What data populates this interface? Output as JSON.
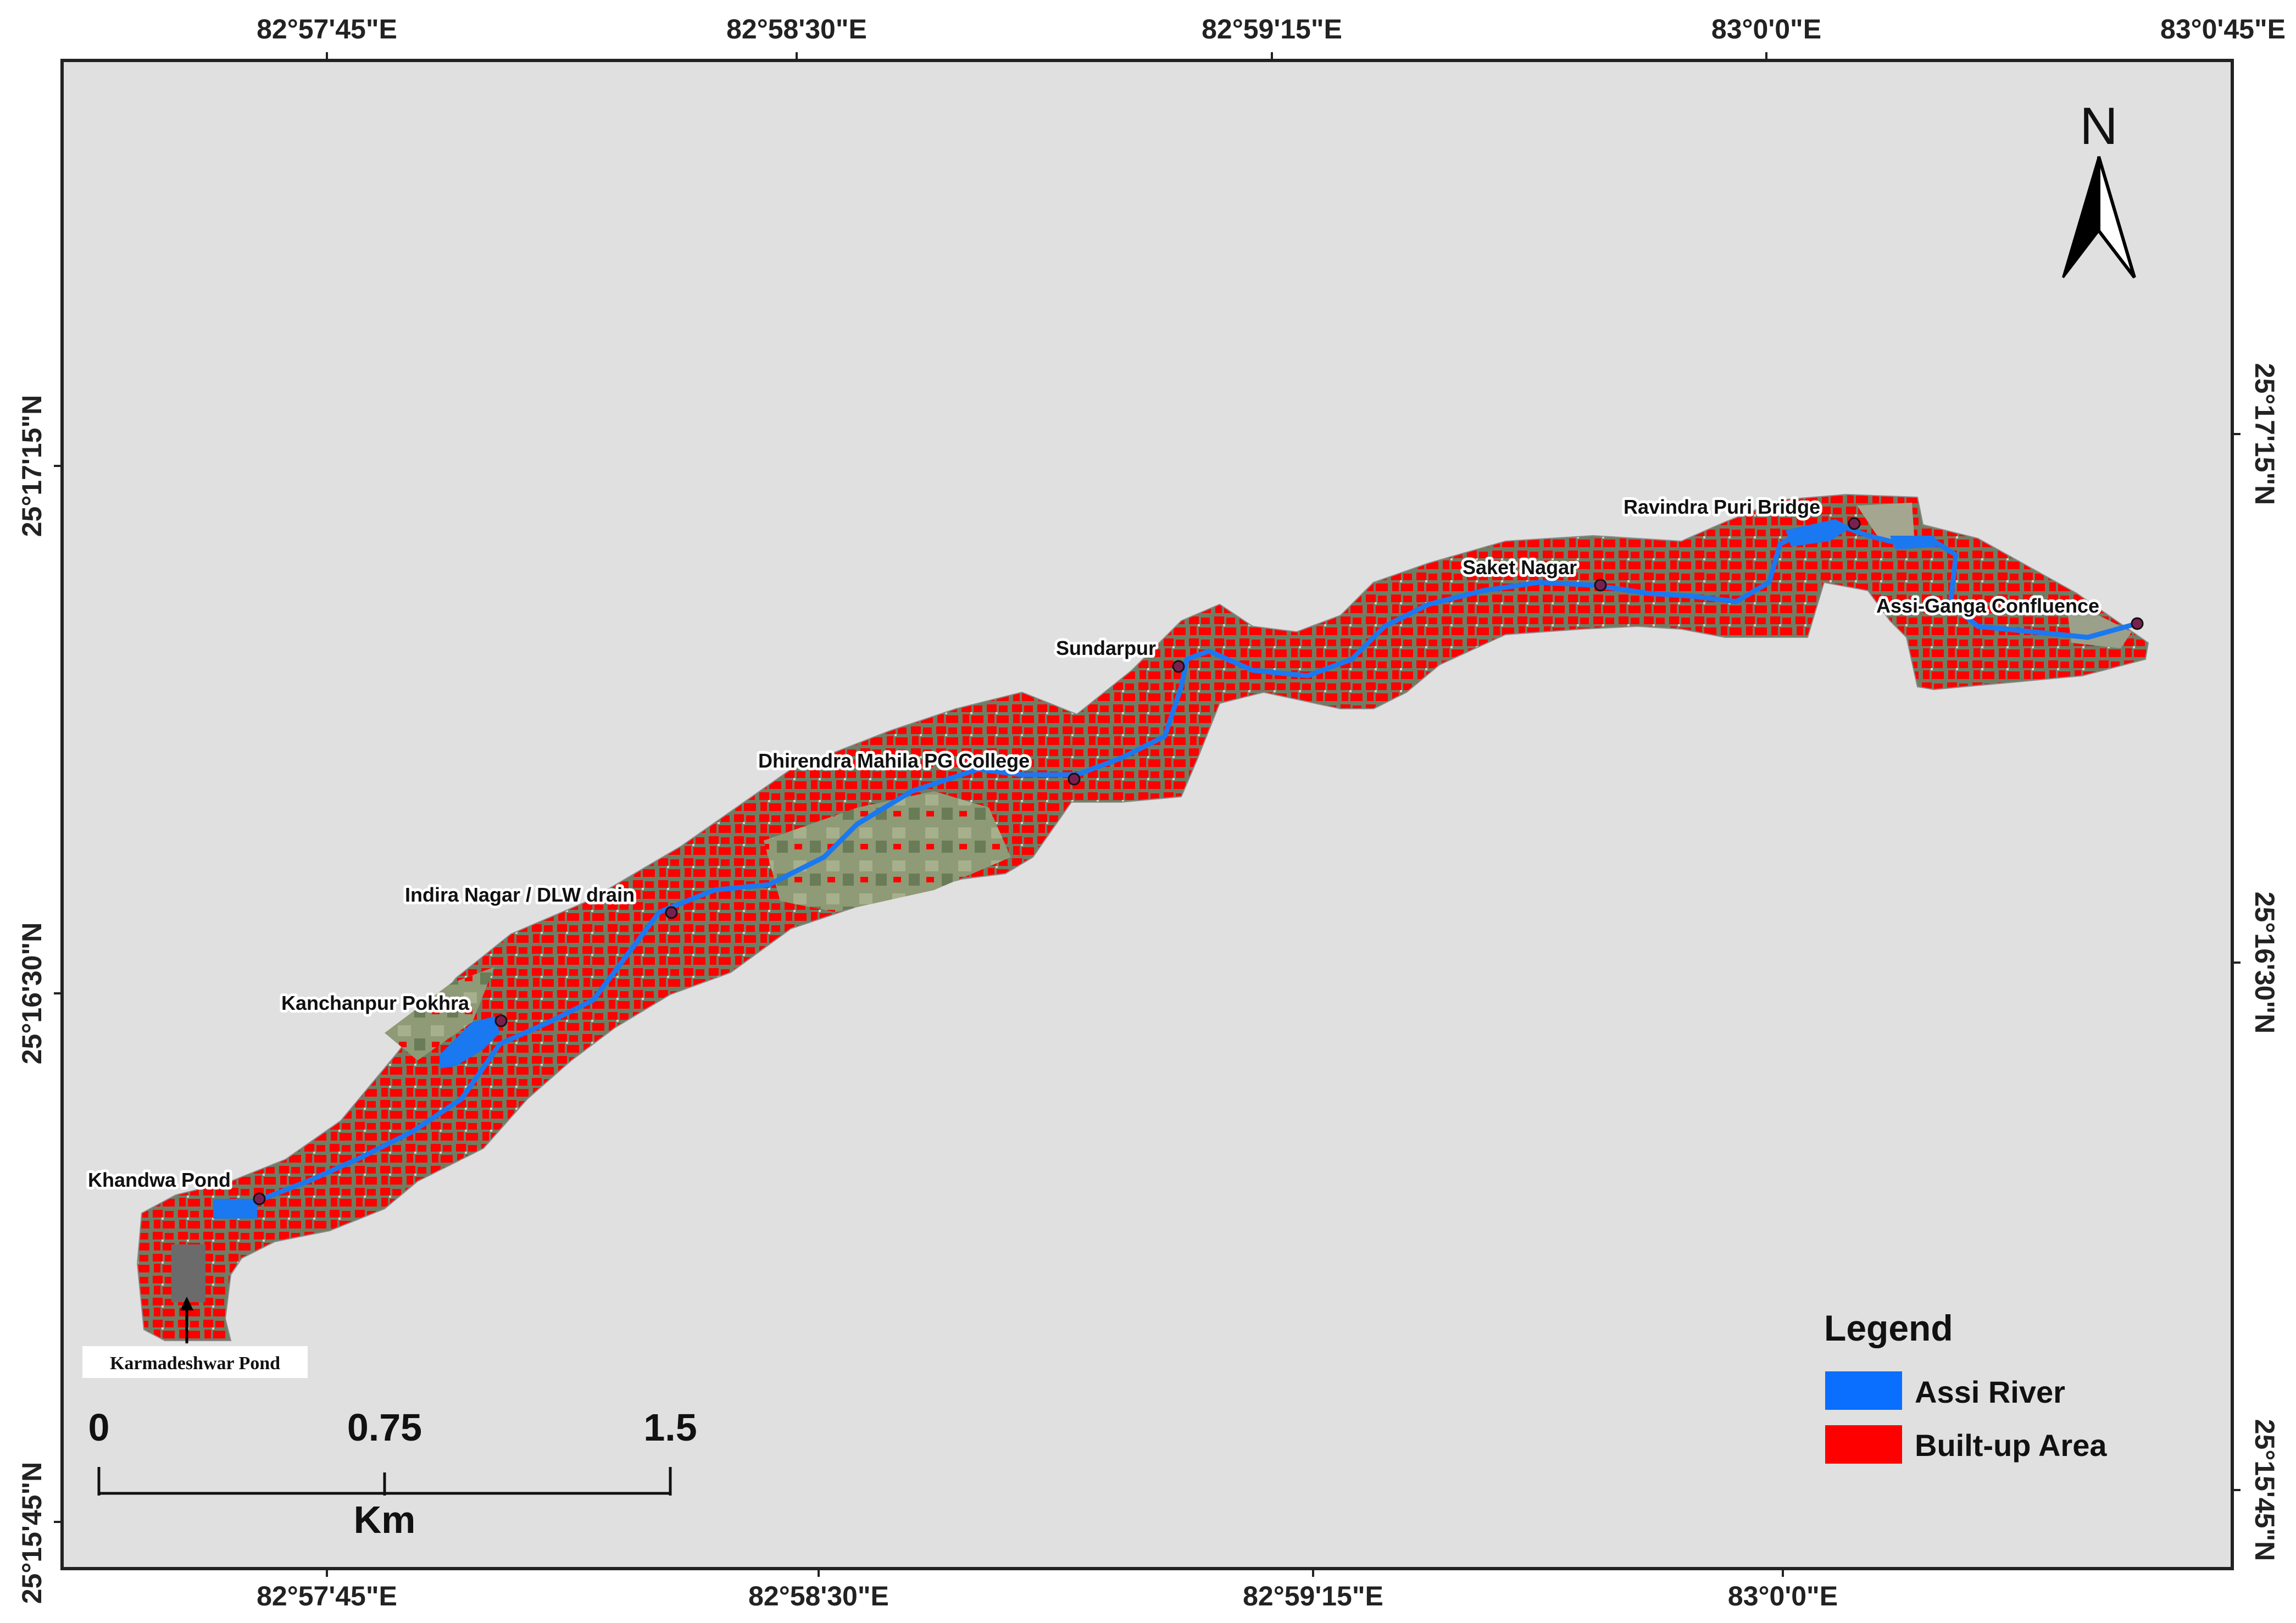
{
  "graticule": {
    "top_longitudes": [
      "82°57'45\"E",
      "82°58'30\"E",
      "82°59'15\"E",
      "83°0'0\"E",
      "83°0'45\"E"
    ],
    "bottom_longitudes": [
      "82°57'45\"E",
      "82°58'30\"E",
      "82°59'15\"E",
      "83°0'0\"E"
    ],
    "left_latitudes": [
      "25°17'15\"N",
      "25°16'30\"N",
      "25°15'45\"N"
    ],
    "right_latitudes": [
      "25°17'15\"N",
      "25°16'30\"N",
      "25°15'45\"N"
    ]
  },
  "places": {
    "ravindra_puri_bridge": "Ravindra Puri Bridge",
    "saket_nagar": "Saket Nagar",
    "assi_ganga_confluence": "Assi-Ganga Confluence",
    "sundarpur": "Sundarpur",
    "dhirendra_mahila_pg_college": "Dhirendra Mahila PG College",
    "indira_nagar_dlw_drain": "Indira Nagar / DLW drain",
    "kanchanpur_pokhra": "Kanchanpur Pokhra",
    "khandwa_pond": "Khandwa Pond",
    "karmadeshwar_pond": "Karmadeshwar Pond"
  },
  "north_arrow": {
    "label": "N",
    "icon": "north-arrow-icon"
  },
  "legend": {
    "title": "Legend",
    "items": [
      {
        "label": "Assi River",
        "color": "#0a6eff"
      },
      {
        "label": "Built-up Area",
        "color": "#ff0000"
      }
    ]
  },
  "scale_bar": {
    "ticks": [
      "0",
      "0.75",
      "1.5"
    ],
    "unit": "Km"
  },
  "colors": {
    "background": "#e0e0e0",
    "river": "#1a78f0",
    "builtup": "#ff0000",
    "imagery": "#7c8a6a",
    "frame": "#222222"
  }
}
